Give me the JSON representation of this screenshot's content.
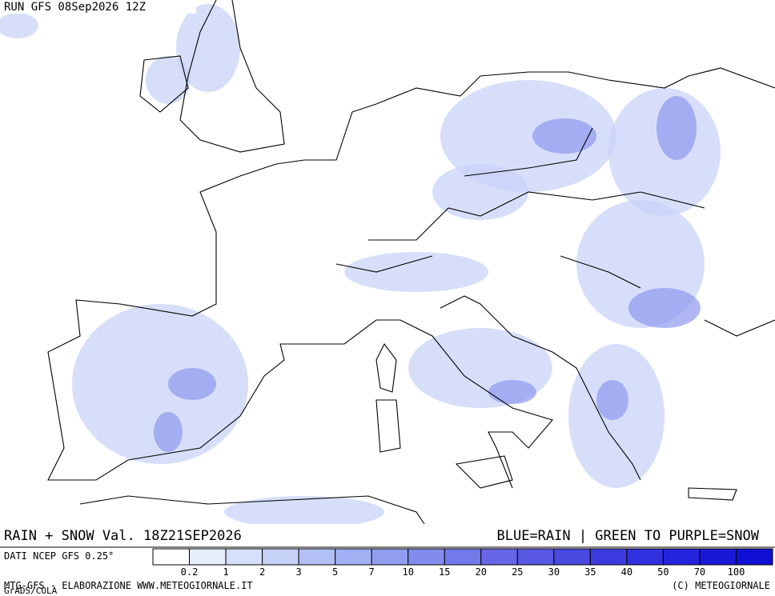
{
  "header": {
    "run": "RUN GFS 08Sep2026 12Z"
  },
  "footer": {
    "validity": "RAIN + SNOW Val. 18Z21SEP2026",
    "key": "BLUE=RAIN | GREEN TO PURPLE=SNOW",
    "source": "DATI NCEP GFS 0.25°",
    "credit": "MTG-GFS - ELABORAZIONE WWW.METEOGIORNALE.IT",
    "grads": "GrADS/COLA",
    "copyright": "(C) METEOGIORNALE"
  },
  "colorbar": {
    "colors": [
      "#ffffff",
      "#e6edfb",
      "#d6e0fa",
      "#c6d2f8",
      "#b3c0f5",
      "#a2aff2",
      "#919ef0",
      "#838cec",
      "#7479e9",
      "#6666e6",
      "#5858e3",
      "#4a49e0",
      "#3d3be0",
      "#3030de",
      "#2424dc",
      "#1a18d8",
      "#1010d4"
    ],
    "labels": [
      "0.2",
      "1",
      "2",
      "3",
      "5",
      "7",
      "10",
      "15",
      "20",
      "25",
      "30",
      "35",
      "40",
      "50",
      "70",
      "100"
    ]
  }
}
